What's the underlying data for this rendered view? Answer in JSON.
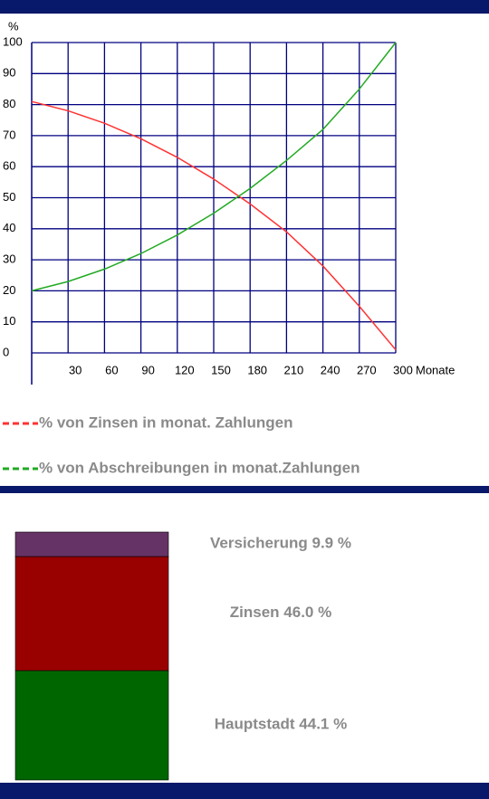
{
  "chart_data": [
    {
      "type": "line",
      "y_label": "%",
      "x_label": "Monate",
      "x": [
        0,
        30,
        60,
        90,
        120,
        150,
        180,
        210,
        240,
        270,
        300
      ],
      "xlim": [
        0,
        300
      ],
      "xticks": [
        30,
        60,
        90,
        120,
        150,
        180,
        210,
        240,
        270,
        300
      ],
      "ylim": [
        0,
        100
      ],
      "yticks": [
        0,
        10,
        20,
        30,
        40,
        50,
        60,
        70,
        80,
        90,
        100
      ],
      "grid": true,
      "grid_color": "#000080",
      "series": [
        {
          "name": "% von Zinsen in monat. Zahlungen",
          "color": "#ff3333",
          "values": [
            81,
            78,
            74,
            69,
            63,
            56,
            48,
            39,
            28,
            15,
            1
          ]
        },
        {
          "name": "% von Abschreibungen in monat.Zahlungen",
          "color": "#22aa22",
          "values": [
            20,
            23,
            27,
            32,
            38,
            45,
            53,
            62,
            72,
            85,
            100
          ]
        }
      ]
    },
    {
      "type": "stacked_bar",
      "series": [
        {
          "name": "Versicherung",
          "color": "#663366",
          "values": [
            9.9
          ],
          "value_labels": [
            "9.9 %"
          ]
        },
        {
          "name": "Zinsen",
          "color": "#990000",
          "values": [
            46.0
          ],
          "value_labels": [
            "46.0 %"
          ]
        },
        {
          "name": "Hauptstadt",
          "color": "#006600",
          "values": [
            44.1
          ],
          "value_labels": [
            "44.1 %"
          ]
        }
      ]
    }
  ]
}
